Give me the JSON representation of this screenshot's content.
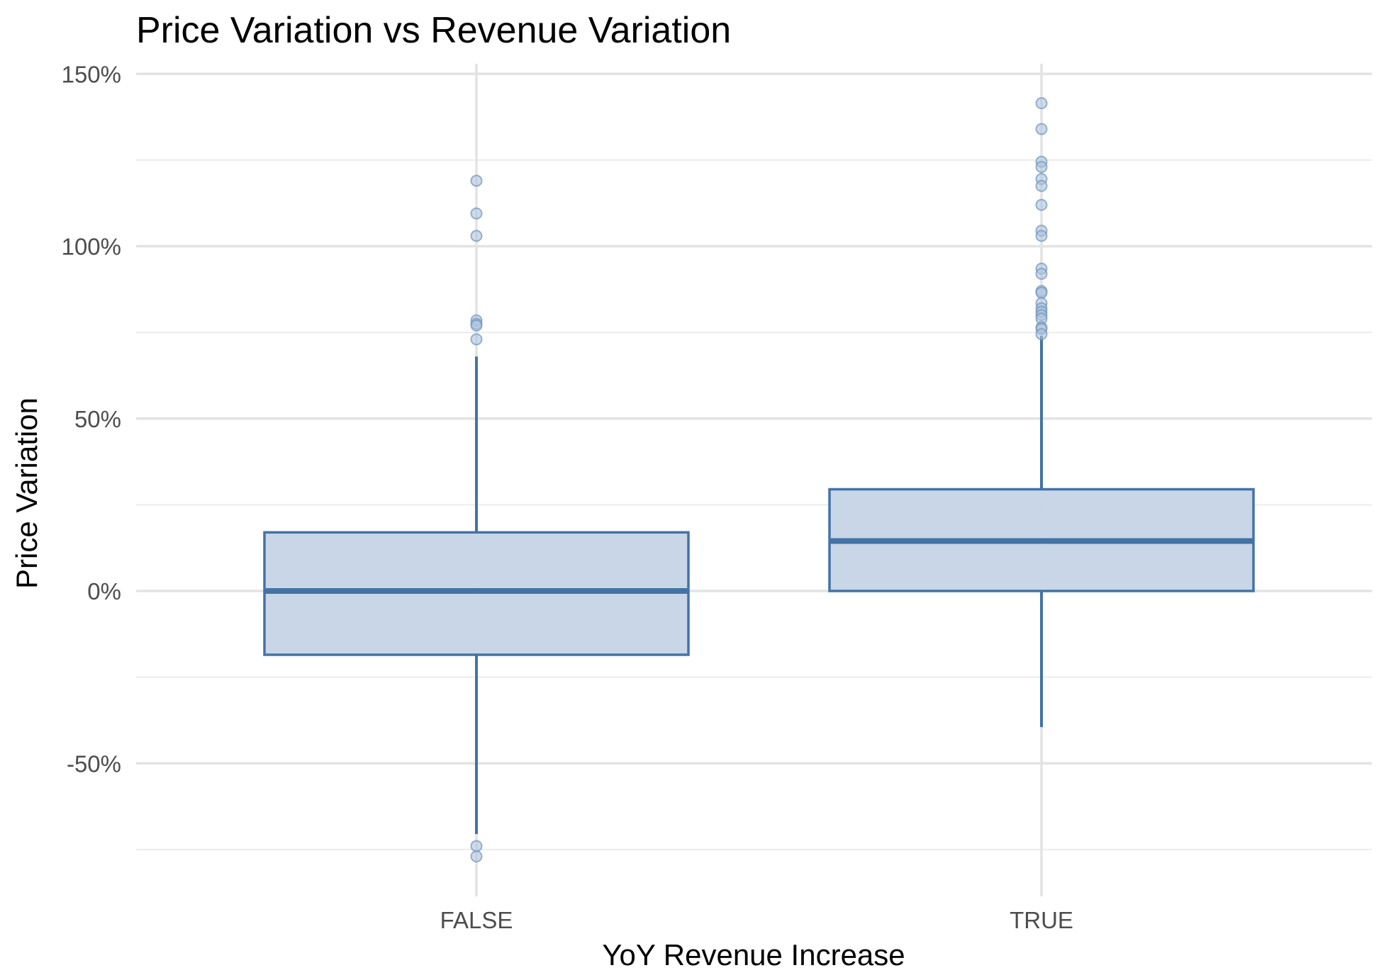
{
  "chart_data": {
    "type": "box",
    "title": "Price Variation vs Revenue Variation",
    "xlabel": "YoY Revenue Increase",
    "ylabel": "Price Variation",
    "categories": [
      "FALSE",
      "TRUE"
    ],
    "y_unit": "percent",
    "ylim": [
      -0.8,
      1.5
    ],
    "y_ticks": [
      -0.5,
      0,
      0.5,
      1.0,
      1.5
    ],
    "y_tick_labels": [
      "-50%",
      "0%",
      "50%",
      "100%",
      "150%"
    ],
    "grid": true,
    "legend": "none",
    "colors": {
      "box_fill": "#c6d4e6",
      "box_stroke": "#4373a6",
      "outlier_fill": "#aec3dc",
      "outlier_stroke": "#6f94bd"
    },
    "boxes": [
      {
        "category": "FALSE",
        "q1": -0.185,
        "median": 0.0,
        "q3": 0.17,
        "whisker_low": -0.705,
        "whisker_high": 0.68,
        "outliers": [
          1.19,
          1.095,
          1.03,
          0.785,
          0.775,
          0.77,
          0.73,
          -0.74,
          -0.77
        ]
      },
      {
        "category": "TRUE",
        "q1": 0.0,
        "median": 0.145,
        "q3": 0.295,
        "whisker_low": -0.395,
        "whisker_high": 0.74,
        "outliers": [
          1.415,
          1.34,
          1.245,
          1.23,
          1.195,
          1.175,
          1.12,
          1.045,
          1.03,
          0.935,
          0.92,
          0.87,
          0.865,
          0.835,
          0.82,
          0.81,
          0.8,
          0.79,
          0.765,
          0.76,
          0.745
        ]
      }
    ]
  }
}
